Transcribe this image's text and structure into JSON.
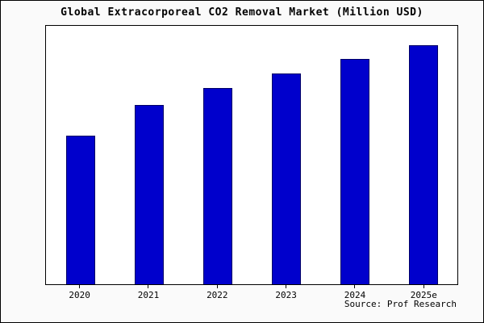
{
  "page": {
    "source": "Source: Prof Research"
  },
  "chart_data": {
    "type": "bar",
    "title": "Global Extracorporeal CO2 Removal Market (Million USD)",
    "categories": [
      "2020",
      "2021",
      "2022",
      "2023",
      "2024",
      "2025e"
    ],
    "values": [
      62,
      75,
      82,
      88,
      94,
      100
    ],
    "xlabel": "",
    "ylabel": "",
    "ylim": [
      0,
      108
    ],
    "grid": false,
    "legend": false,
    "bar_color": "#0000cc",
    "bar_edge_color": "#000066"
  }
}
